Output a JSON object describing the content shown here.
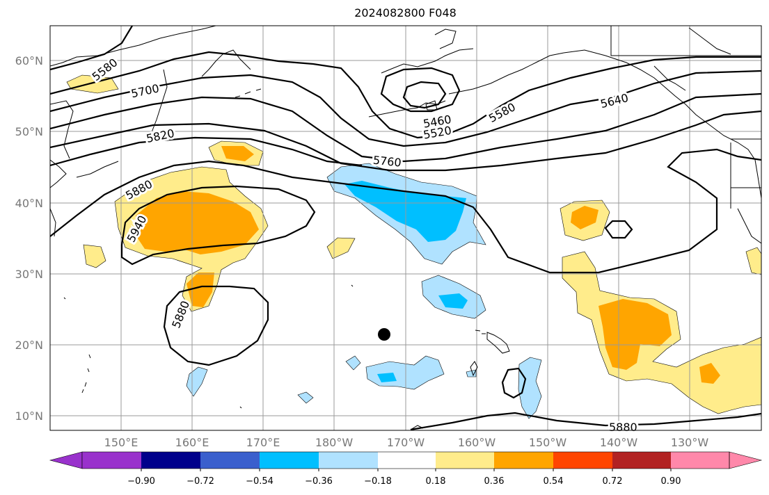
{
  "title": "2024082800 F048",
  "lat_labels": [
    "60°N",
    "50°N",
    "40°N",
    "30°N",
    "20°N",
    "10°N"
  ],
  "lon_labels": [
    "150°E",
    "160°E",
    "170°E",
    "180°W",
    "170°W",
    "160°W",
    "150°W",
    "140°W",
    "130°W"
  ],
  "contour_labels": [
    "5580",
    "5700",
    "5820",
    "5880",
    "5940",
    "5880",
    "5760",
    "5460",
    "5520",
    "5580",
    "5640",
    "5880"
  ],
  "colorbar": {
    "ticks": [
      "−0.90",
      "−0.72",
      "−0.54",
      "−0.36",
      "−0.18",
      "0.18",
      "0.36",
      "0.54",
      "0.72",
      "0.90"
    ],
    "colors": [
      "#9932cc",
      "#00008b",
      "#3a5fcd",
      "#00bfff",
      "#b0e2ff",
      "#ffffff",
      "#ffec8b",
      "#ffa500",
      "#ff4500",
      "#b22222",
      "#ff88aa"
    ]
  },
  "marker": "storm-center"
}
